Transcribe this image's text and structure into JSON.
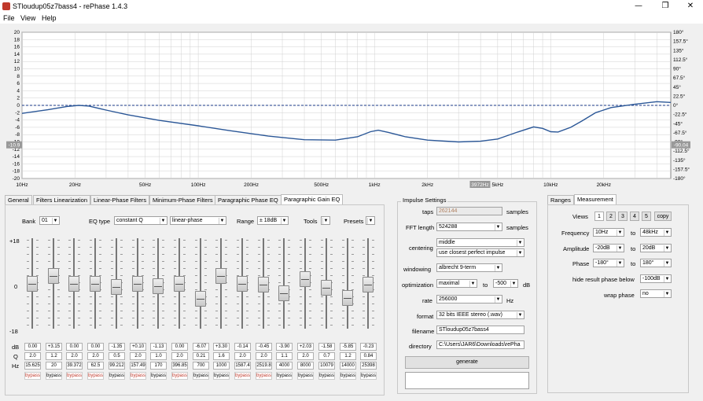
{
  "window": {
    "title": "STloudup05z7bass4  -  rePhase 1.4.3",
    "min": "—",
    "restore": "❐",
    "close": "✕"
  },
  "menu": [
    "File",
    "View",
    "Help"
  ],
  "plot": {
    "y_left_ticks": [
      "20",
      "18",
      "16",
      "14",
      "12",
      "10",
      "8",
      "6",
      "4",
      "2",
      "0",
      "-2",
      "-4",
      "-6",
      "-8",
      "-10",
      "-12",
      "-14",
      "-16",
      "-18",
      "-20"
    ],
    "y_right_ticks": [
      "180°",
      "157.5°",
      "135°",
      "112.5°",
      "90°",
      "67.5°",
      "45°",
      "22.5°",
      "0°",
      "-22.5°",
      "-45°",
      "-67.5°",
      "-90°",
      "-112.5°",
      "-135°",
      "-157.5°",
      "-180°"
    ],
    "x_ticks": [
      "10Hz",
      "20Hz",
      "50Hz",
      "100Hz",
      "200Hz",
      "500Hz",
      "1kHz",
      "2kHz",
      "5kHz",
      "10kHz",
      "20kHz"
    ],
    "cursor_left": "-10.9",
    "cursor_right": "-90.04",
    "cursor_x": "3972Hz",
    "colors": {
      "curve": "#2b5797",
      "phase": "#1a3a8a",
      "grid": "#d0d0d0"
    }
  },
  "tabs": [
    "General",
    "Filters Linearization",
    "Linear-Phase Filters",
    "Minimum-Phase Filters",
    "Paragraphic Phase EQ",
    "Paragraphic Gain EQ"
  ],
  "eq": {
    "bank_label": "Bank",
    "bank": "01",
    "eqtype_label": "EQ type",
    "eqtype": "constant Q",
    "phase": "linear-phase",
    "range_label": "Range",
    "range": "± 18dB",
    "tools": "Tools",
    "presets": "Presets",
    "scale": [
      "+18",
      "0",
      "-18"
    ],
    "row_labels": [
      "dB",
      "Q",
      "Hz"
    ],
    "bands": [
      {
        "db": "0.00",
        "q": "2.0",
        "hz": "15.625",
        "bypass": "bypass",
        "on": true
      },
      {
        "db": "+3.15",
        "q": "1.2",
        "hz": "20",
        "bypass": "bypass",
        "on": false
      },
      {
        "db": "0.00",
        "q": "2.0",
        "hz": "39.372",
        "bypass": "bypass",
        "on": true
      },
      {
        "db": "0.00",
        "q": "2.0",
        "hz": "62.5",
        "bypass": "bypass",
        "on": true
      },
      {
        "db": "-1.35",
        "q": "0.5",
        "hz": "99.212",
        "bypass": "bypass",
        "on": false
      },
      {
        "db": "+0.10",
        "q": "2.0",
        "hz": "157.49",
        "bypass": "bypass",
        "on": true
      },
      {
        "db": "-1.13",
        "q": "1.0",
        "hz": "170",
        "bypass": "bypass",
        "on": false
      },
      {
        "db": "0.00",
        "q": "2.0",
        "hz": "396.85",
        "bypass": "bypass",
        "on": true
      },
      {
        "db": "-6.07",
        "q": "0.21",
        "hz": "700",
        "bypass": "bypass",
        "on": false
      },
      {
        "db": "+3.30",
        "q": "1.6",
        "hz": "1000",
        "bypass": "bypass",
        "on": false
      },
      {
        "db": "-0.14",
        "q": "2.0",
        "hz": "1587.4",
        "bypass": "bypass",
        "on": true
      },
      {
        "db": "-0.45",
        "q": "2.0",
        "hz": "2519.8",
        "bypass": "bypass",
        "on": true
      },
      {
        "db": "-3.90",
        "q": "1.1",
        "hz": "4000",
        "bypass": "bypass",
        "on": false
      },
      {
        "db": "+2.03",
        "q": "2.0",
        "hz": "8000",
        "bypass": "bypass",
        "on": false
      },
      {
        "db": "-1.58",
        "q": "0.7",
        "hz": "10079",
        "bypass": "bypass",
        "on": false
      },
      {
        "db": "-5.85",
        "q": "1.2",
        "hz": "14000",
        "bypass": "bypass",
        "on": false
      },
      {
        "db": "-0.23",
        "q": "0.84",
        "hz": "25398",
        "bypass": "bypass",
        "on": false
      }
    ]
  },
  "impulse": {
    "title": "Impulse Settings",
    "taps_label": "taps",
    "taps": "262144",
    "taps_unit": "samples",
    "fft_label": "FFT length",
    "fft": "524288",
    "fft_unit": "samples",
    "centering_label": "centering",
    "centering": "middle",
    "centering2": "use closest perfect impulse",
    "windowing_label": "windowing",
    "windowing": "albrecht 9-term",
    "opt_label": "optimization",
    "opt": "maximal",
    "to": "to",
    "opt_db": "-500",
    "db": "dB",
    "rate_label": "rate",
    "rate": "256000",
    "hz": "Hz",
    "format_label": "format",
    "format": "32 bits IEEE stereo (.wav)",
    "filename_label": "filename",
    "filename": "STloudup05z7bass4",
    "directory_label": "directory",
    "directory": "C:\\Users\\JAR6\\Downloads\\rePha",
    "generate": "generate"
  },
  "ranges": {
    "tabs": [
      "Ranges",
      "Measurement"
    ],
    "views_label": "Views",
    "views": [
      "1",
      "2",
      "3",
      "4",
      "5"
    ],
    "copy": "copy",
    "freq_label": "Frequency",
    "freq_from": "10Hz",
    "freq_to": "48kHz",
    "amp_label": "Amplitude",
    "amp_from": "-20dB",
    "amp_to": "20dB",
    "phase_label": "Phase",
    "phase_from": "-180°",
    "phase_to": "180°",
    "hide_label": "hide result phase below",
    "hide": "-100dB",
    "wrap_label": "wrap phase",
    "wrap": "no",
    "to": "to"
  }
}
